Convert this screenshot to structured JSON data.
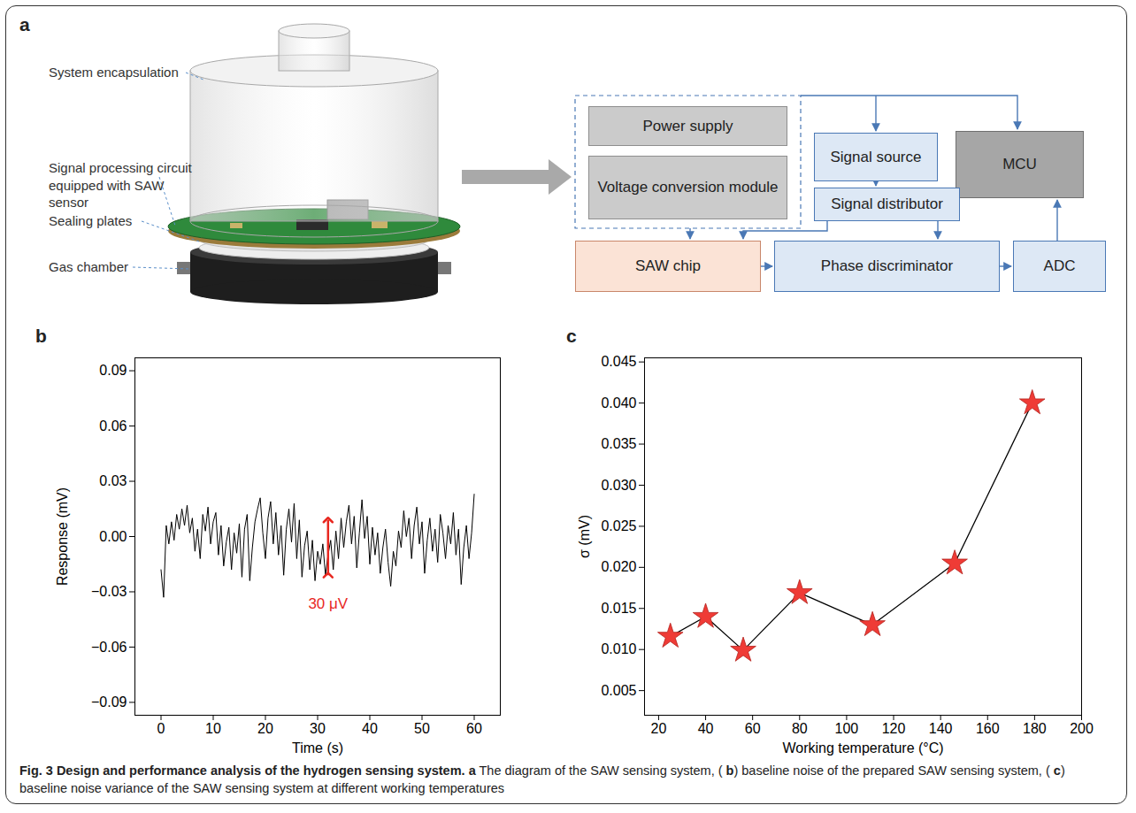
{
  "diagram": {
    "panel": "a",
    "illustration_labels": {
      "encapsulation": "System encapsulation",
      "circuit": "Signal processing circuit equipped with SAW sensor",
      "sealing": "Sealing plates",
      "chamber": "Gas chamber"
    },
    "blocks": {
      "power": "Power supply",
      "voltage": "Voltage conversion module",
      "source": "Signal source",
      "mcu": "MCU",
      "distributor": "Signal distributor",
      "saw": "SAW chip",
      "phase": "Phase discriminator",
      "adc": "ADC"
    }
  },
  "chart_data": [
    {
      "type": "line",
      "panel": "b",
      "x_label": "Time (s)",
      "y_label": "Response (mV)",
      "color": "#000000",
      "x": [
        0,
        0.5,
        1,
        1.5,
        2,
        2.5,
        3,
        3.5,
        4,
        4.5,
        5,
        5.5,
        6,
        6.5,
        7,
        7.5,
        8,
        8.5,
        9,
        9.5,
        10,
        10.5,
        11,
        11.5,
        12,
        12.5,
        13,
        13.5,
        14,
        14.5,
        15,
        15.5,
        16,
        16.5,
        17,
        17.5,
        18,
        18.5,
        19,
        19.5,
        20,
        20.5,
        21,
        21.5,
        22,
        22.5,
        23,
        23.5,
        24,
        24.5,
        25,
        25.5,
        26,
        26.5,
        27,
        27.5,
        28,
        28.5,
        29,
        29.5,
        30,
        30.5,
        31,
        31.5,
        32,
        32.5,
        33,
        33.5,
        34,
        34.5,
        35,
        35.5,
        36,
        36.5,
        37,
        37.5,
        38,
        38.5,
        39,
        39.5,
        40,
        40.5,
        41,
        41.5,
        42,
        42.5,
        43,
        43.5,
        44,
        44.5,
        45,
        45.5,
        46,
        46.5,
        47,
        47.5,
        48,
        48.5,
        49,
        49.5,
        50,
        50.5,
        51,
        51.5,
        52,
        52.5,
        53,
        53.5,
        54,
        54.5,
        55,
        55.5,
        56,
        56.5,
        57,
        57.5,
        58,
        58.5,
        59,
        59.5,
        60
      ],
      "values": [
        -0.018,
        -0.033,
        0.006,
        -0.004,
        0.008,
        -0.002,
        0.012,
        0.004,
        0.015,
        0.006,
        0.017,
        0.002,
        0.01,
        -0.008,
        0.004,
        -0.012,
        0.012,
        0.003,
        0.016,
        -0.004,
        0.008,
        0.013,
        -0.01,
        0.006,
        -0.016,
        -0.003,
        0.005,
        -0.018,
        0.002,
        -0.009,
        0.007,
        -0.022,
        0.004,
        0.012,
        -0.024,
        -0.006,
        0.008,
        0.015,
        0.021,
        0.002,
        -0.012,
        0.01,
        0.019,
        -0.004,
        0.013,
        -0.01,
        0.006,
        -0.021,
        0.004,
        0.015,
        -0.003,
        0.018,
        -0.012,
        0.009,
        -0.022,
        -0.005,
        0.003,
        -0.018,
        -0.002,
        -0.024,
        -0.008,
        -0.015,
        -0.004,
        -0.021,
        -0.01,
        -0.002,
        -0.018,
        0.003,
        -0.012,
        0.01,
        -0.006,
        0.008,
        0.017,
        -0.004,
        0.011,
        -0.017,
        0.002,
        0.02,
        -0.001,
        0.011,
        -0.015,
        0.005,
        -0.01,
        0.002,
        -0.02,
        -0.006,
        0.004,
        -0.014,
        -0.027,
        -0.008,
        -0.016,
        0.003,
        -0.006,
        0.014,
        0.0,
        0.01,
        -0.012,
        0.006,
        0.016,
        -0.004,
        0.008,
        -0.02,
        -0.002,
        0.01,
        -0.008,
        0.004,
        -0.014,
        0.012,
        0.002,
        -0.012,
        0.006,
        -0.004,
        0.013,
        -0.01,
        0.004,
        -0.026,
        -0.006,
        0.006,
        -0.012,
        0.002,
        0.023
      ],
      "xlim": [
        -5,
        65
      ],
      "xticks": [
        0,
        10,
        20,
        30,
        40,
        50,
        60
      ],
      "ylim": [
        -0.097,
        0.097
      ],
      "yticks": [
        {
          "value": -0.09,
          "label": "−0.09"
        },
        {
          "value": -0.06,
          "label": "−0.06"
        },
        {
          "value": -0.03,
          "label": "−0.03"
        },
        {
          "value": 0,
          "label": "0.00"
        },
        0.03,
        0.06,
        0.09
      ],
      "grid": false,
      "annotation": {
        "text": "30 μV",
        "x": 32,
        "y1": -0.021,
        "y2": 0.009,
        "color": "#e8271f"
      }
    },
    {
      "type": "line",
      "panel": "c",
      "x_label": "Working temperature (°C)",
      "y_label": "σ (mV)",
      "marker": "star",
      "color": "#ef3b36",
      "x": [
        25,
        40,
        56,
        80,
        111,
        146,
        179
      ],
      "values": [
        0.0116,
        0.014,
        0.0099,
        0.0169,
        0.013,
        0.0205,
        0.04
      ],
      "xlim": [
        14,
        200
      ],
      "xticks": [
        20,
        40,
        60,
        80,
        100,
        120,
        140,
        160,
        180,
        200
      ],
      "ylim": [
        0.002,
        0.0455
      ],
      "yticks": [
        0.005,
        {
          "value": 0.01,
          "label": "0.010"
        },
        0.015,
        {
          "value": 0.02,
          "label": "0.020"
        },
        0.025,
        {
          "value": 0.03,
          "label": "0.030"
        },
        0.035,
        {
          "value": 0.04,
          "label": "0.040"
        },
        0.045
      ],
      "grid": false
    }
  ],
  "caption": {
    "heading": "Fig. 3 Design and performance analysis of the hydrogen sensing system.",
    "parts": [
      {
        "bold": "a",
        "text": " The diagram of the SAW sensing system, ("
      },
      {
        "bold": "b",
        "text": ") baseline noise of the prepared SAW sensing system, ("
      },
      {
        "bold": "c",
        "text": ") baseline noise variance of the SAW sensing system at different working temperatures"
      }
    ]
  }
}
